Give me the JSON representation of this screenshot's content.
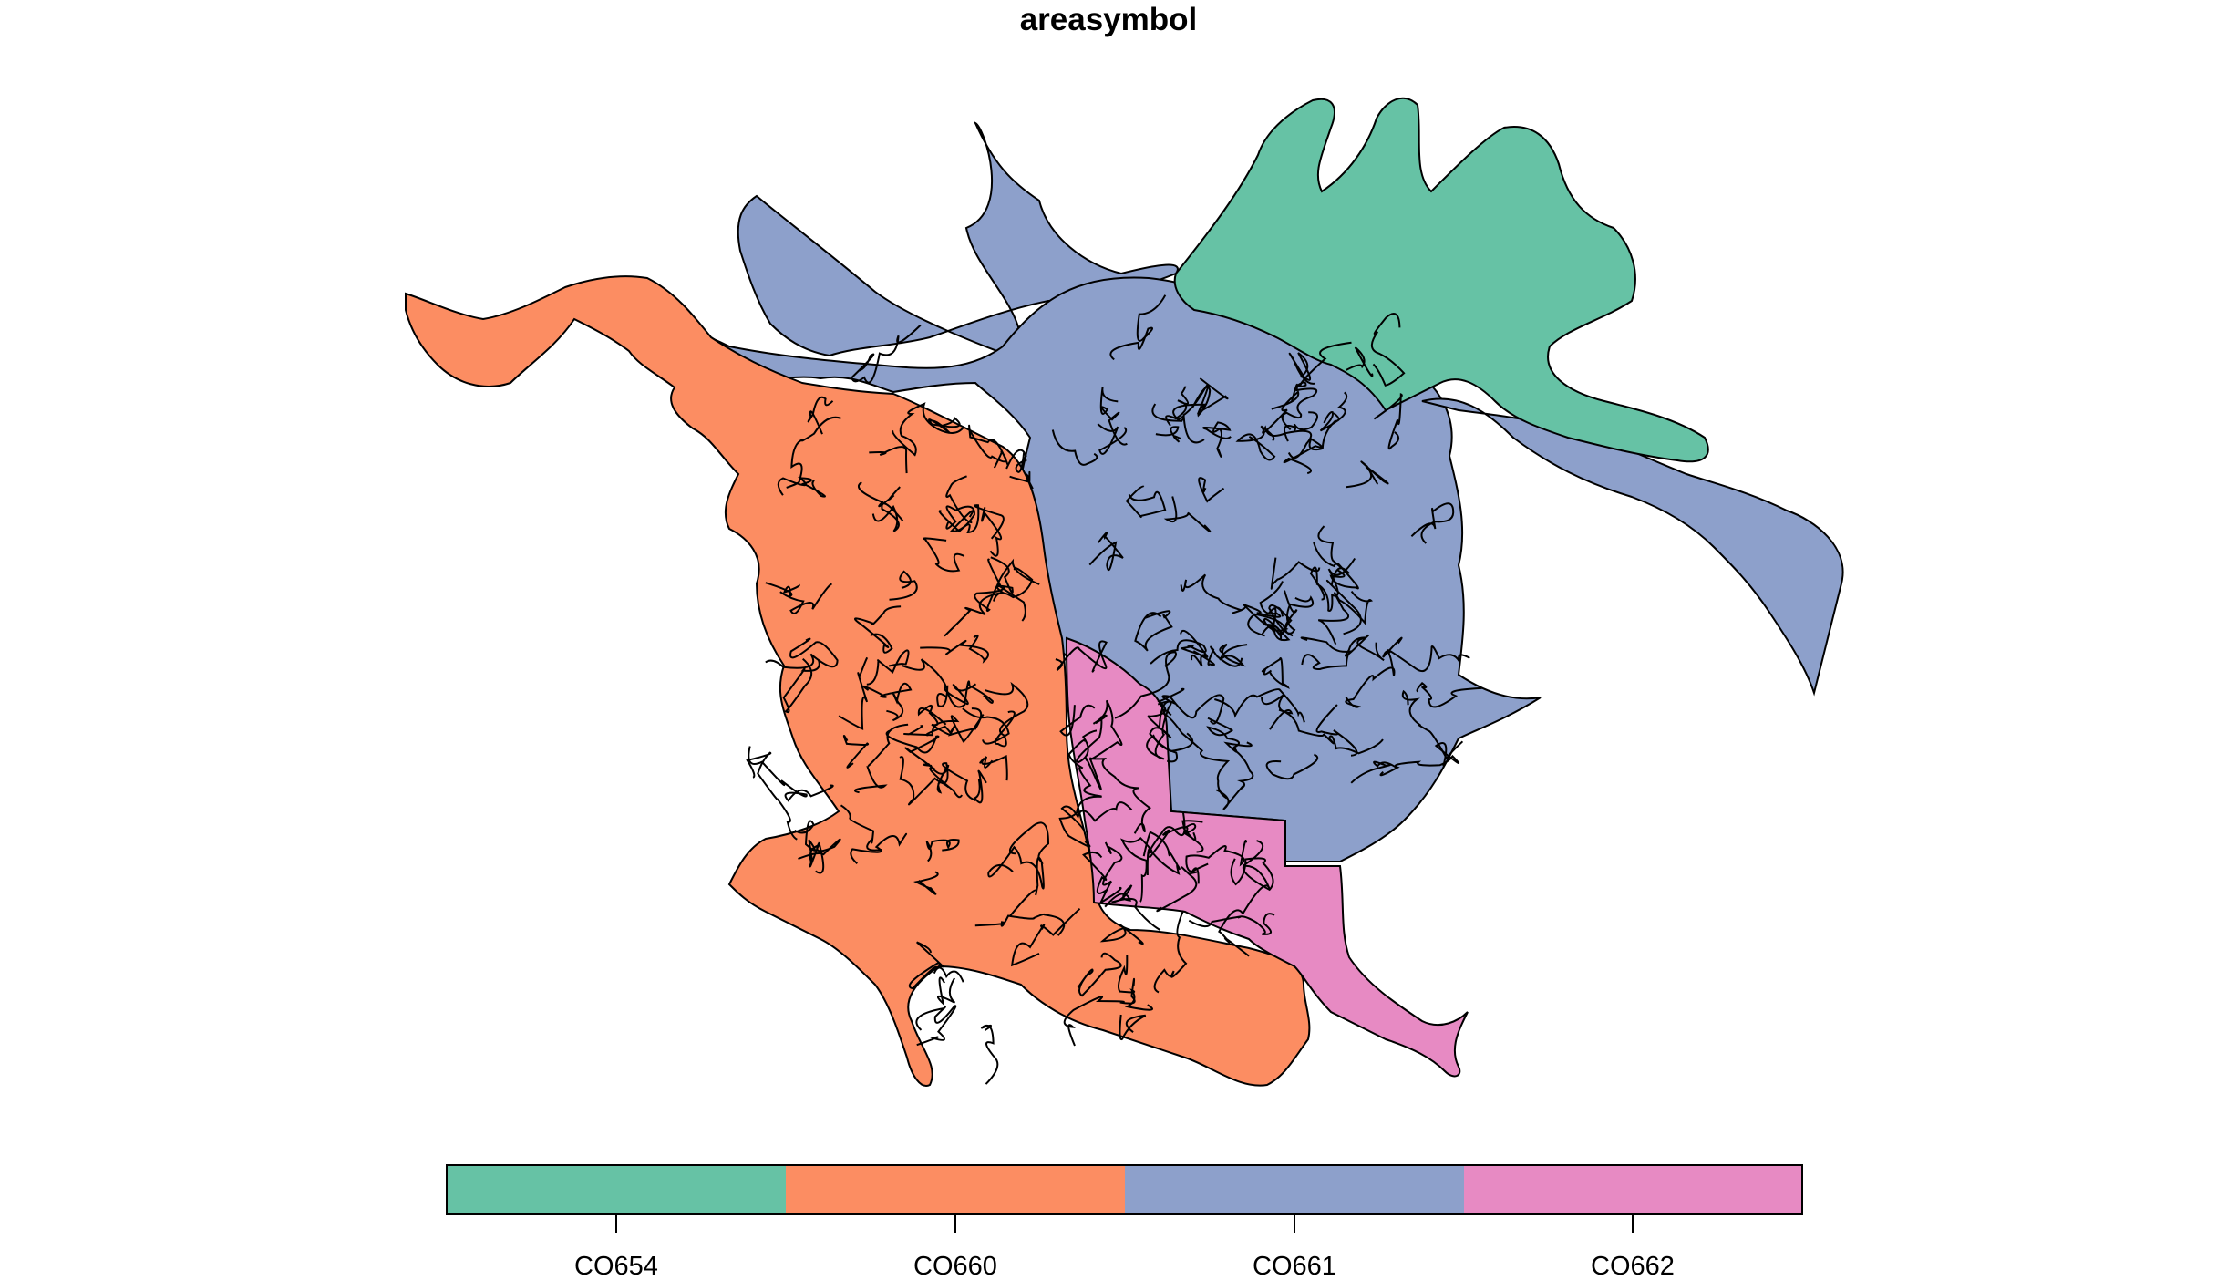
{
  "title": "areasymbol",
  "legend": {
    "categories": [
      {
        "label": "CO654",
        "color": "#66C2A5"
      },
      {
        "label": "CO660",
        "color": "#FC8D62"
      },
      {
        "label": "CO661",
        "color": "#8DA0CB"
      },
      {
        "label": "CO662",
        "color": "#E78AC3"
      }
    ]
  },
  "regions": [
    {
      "name": "CO654",
      "color": "#66C2A5"
    },
    {
      "name": "CO660",
      "color": "#FC8D62"
    },
    {
      "name": "CO661",
      "color": "#8DA0CB"
    },
    {
      "name": "CO662",
      "color": "#E78AC3"
    }
  ]
}
